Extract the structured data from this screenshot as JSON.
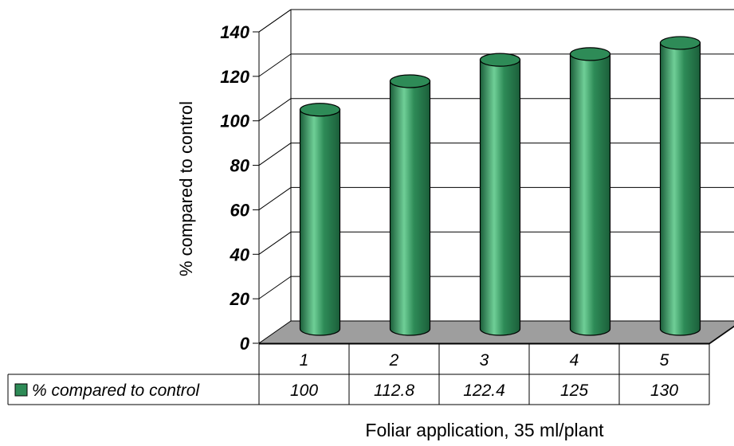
{
  "chart_data": {
    "type": "bar",
    "style": "3d-cylinder",
    "categories": [
      "1",
      "2",
      "3",
      "4",
      "5"
    ],
    "series": [
      {
        "name": "% compared to control",
        "values": [
          100,
          112.8,
          122.4,
          125,
          130
        ]
      }
    ],
    "ylabel": "% compared to control",
    "xlabel": "Foliar application, 35 ml/plant",
    "ylim": [
      0,
      140
    ],
    "yticks": [
      "0",
      "20",
      "40",
      "60",
      "80",
      "100",
      "120",
      "140"
    ],
    "table_values": [
      "100",
      "112.8",
      "122.4",
      "125",
      "130"
    ],
    "grid": true,
    "legend": "data-table-left",
    "colors": {
      "bar": "#2e8b57",
      "bar_dark": "#1b5e3a",
      "bar_light": "#6fcf97",
      "floor": "#9e9e9e"
    }
  }
}
